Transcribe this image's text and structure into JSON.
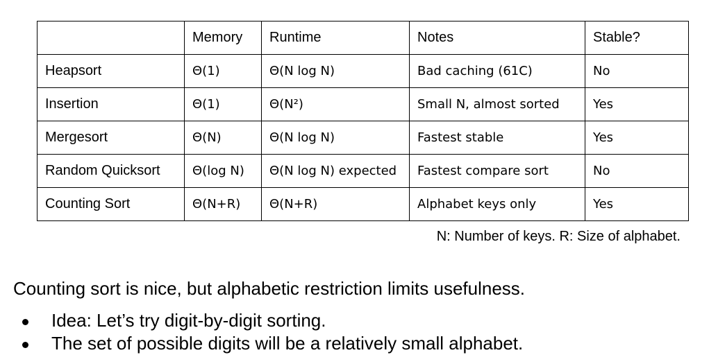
{
  "table": {
    "headers": [
      "",
      "Memory",
      "Runtime",
      "Notes",
      "Stable?"
    ],
    "rows": [
      {
        "name": "Heapsort",
        "memory": "Θ(1)",
        "runtime": "Θ(N log N)",
        "notes": "Bad caching (61C)",
        "stable": "No"
      },
      {
        "name": "Insertion",
        "memory": "Θ(1)",
        "runtime": "Θ(N²)",
        "notes": "Small N, almost sorted",
        "stable": "Yes"
      },
      {
        "name": "Mergesort",
        "memory": "Θ(N)",
        "runtime": "Θ(N log N)",
        "notes": "Fastest stable",
        "stable": "Yes"
      },
      {
        "name": "Random Quicksort",
        "memory": "Θ(log N)",
        "runtime": "Θ(N log N) expected",
        "notes": "Fastest compare sort",
        "stable": "No"
      },
      {
        "name": "Counting Sort",
        "memory": "Θ(N+R)",
        "runtime": "Θ(N+R)",
        "notes": "Alphabet keys only",
        "stable": "Yes"
      }
    ]
  },
  "caption": "N: Number of keys. R: Size of alphabet.",
  "main_text": "Counting sort is nice, but alphabetic restriction limits usefulness.",
  "bullets": [
    "Idea: Let’s try digit-by-digit sorting.",
    "The set of possible digits will be a relatively small alphabet."
  ]
}
